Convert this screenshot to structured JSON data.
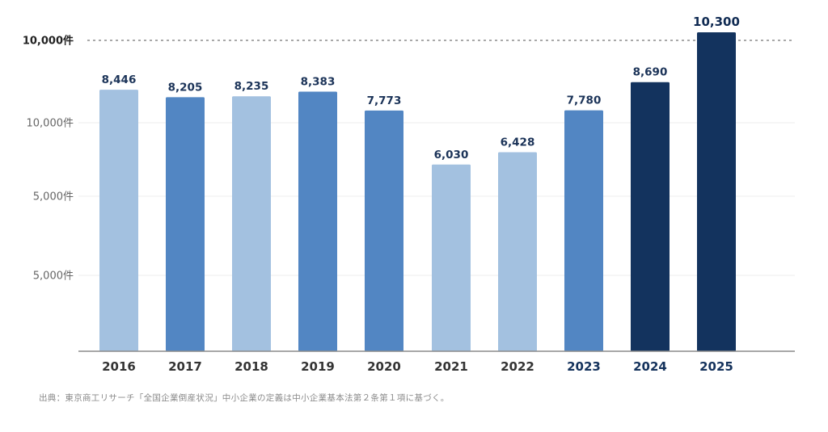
{
  "chart_data": {
    "type": "bar",
    "categories": [
      "2016",
      "2017",
      "2018",
      "2019",
      "2020",
      "2021",
      "2022",
      "2023",
      "2024",
      "2025"
    ],
    "values": [
      8446,
      8205,
      8235,
      8383,
      7773,
      6030,
      6428,
      7780,
      8690,
      10300
    ],
    "data_labels": [
      "8,446",
      "8,205",
      "8,235",
      "8,383",
      "7,773",
      "6,030",
      "6,428",
      "7,780",
      "8,690",
      "10,300"
    ],
    "bar_colors": [
      "#a3c1e0",
      "#5286c3",
      "#a3c1e0",
      "#5286c3",
      "#5286c3",
      "#a3c1e0",
      "#a3c1e0",
      "#5286c3",
      "#13335e",
      "#13335e"
    ],
    "y_tick_labels": [
      "10,000件",
      "10,000件",
      "5,000件",
      "5,000件"
    ],
    "reference_line": {
      "value": 10000,
      "style": "dotted"
    },
    "ylim": [
      0,
      10300
    ],
    "title": "",
    "xlabel": "",
    "ylabel": "",
    "grid": true
  },
  "source_note": "出典：東京商工リサーチ「全国企業倒産状況」中小企業の定義は中小企業基本法第２条第１項に基づく。"
}
